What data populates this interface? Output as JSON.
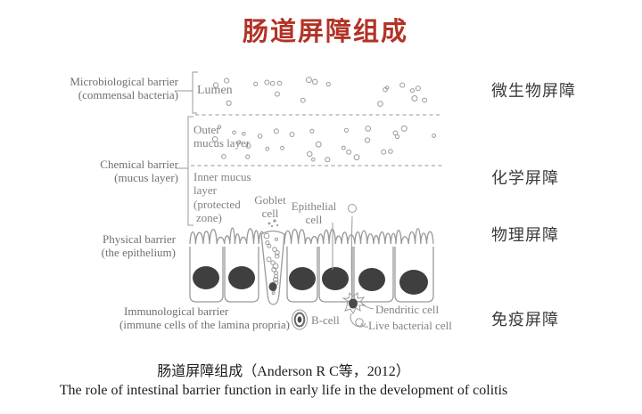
{
  "title": "肠道屏障组成",
  "colors": {
    "title_red": "#b23326",
    "diagram_stroke": "#9a9a9a",
    "nucleus": "#3f3f3f",
    "label_gray": "#6f6f6f",
    "zone_gray": "#828282",
    "cn_label": "#3a3a3a",
    "caption": "#1c1c1c"
  },
  "diagram": {
    "left_labels": [
      {
        "line1": "Microbiological barrier",
        "line2": "(commensal bacteria)"
      },
      {
        "line1": "Chemical barrier",
        "line2": "(mucus layer)"
      },
      {
        "line1": "Physical barrier",
        "line2": "(the epithelium)"
      },
      {
        "line1": "Immunological barrier",
        "line2": "(immune cells of the lamina propria)"
      }
    ],
    "zone_labels": {
      "lumen": "Lumen",
      "outer_mucus_1": "Outer",
      "outer_mucus_2": "mucus layer",
      "inner_mucus_1": "Inner mucus",
      "inner_mucus_2": "layer",
      "inner_mucus_3": "(protected",
      "inner_mucus_4": "zone)"
    },
    "cell_labels": {
      "goblet_1": "Goblet",
      "goblet_2": "cell",
      "epithelial_1": "Epithelial",
      "epithelial_2": "cell",
      "b_cell": "B-cell",
      "dendritic": "Dendritic cell",
      "live_bacterial": "Live bacterial cell"
    },
    "icons": [
      "bacteria-dots-icon",
      "microvilli-border-icon",
      "goblet-cell-icon",
      "b-cell-icon",
      "dendritic-cell-icon"
    ]
  },
  "right_labels": [
    {
      "label": "微生物屏障"
    },
    {
      "label": "化学屏障"
    },
    {
      "label": "物理屏障"
    },
    {
      "label": "免疫屏障"
    }
  ],
  "captions": {
    "chinese": "肠道屏障组成（Anderson R C等，2012）",
    "english": "The role of intestinal barrier function in early life in the development of colitis"
  }
}
